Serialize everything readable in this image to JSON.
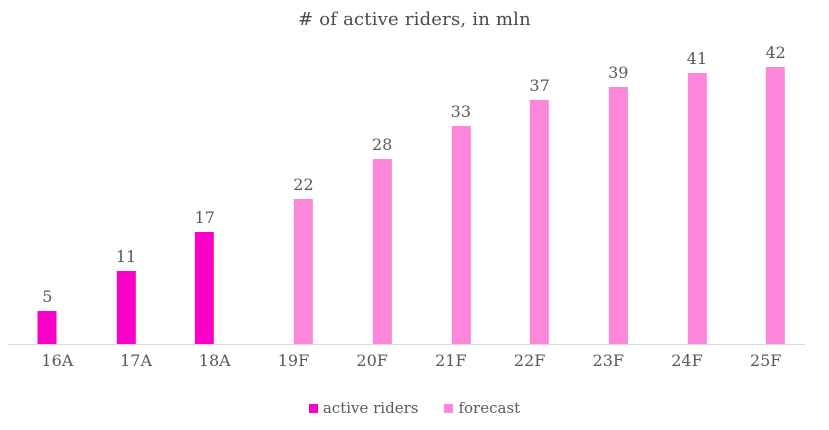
{
  "chart_data": {
    "type": "bar",
    "title": "# of active riders, in mln",
    "categories": [
      "16A",
      "17A",
      "18A",
      "19F",
      "20F",
      "21F",
      "22F",
      "23F",
      "24F",
      "25F"
    ],
    "series": [
      {
        "name": "active riders",
        "color": "#fa00c8",
        "values": [
          5,
          11,
          17,
          null,
          null,
          null,
          null,
          null,
          null,
          null
        ]
      },
      {
        "name": "forecast",
        "color": "#fc86da",
        "values": [
          null,
          null,
          null,
          22,
          28,
          33,
          37,
          39,
          41,
          42
        ]
      }
    ],
    "value_labels_shown": true,
    "xlabel": "",
    "ylabel": "",
    "ylim": [
      0,
      42
    ],
    "grid": "off",
    "y_axis_shown": false,
    "legend_position": "bottom",
    "colors": {
      "title_text": "#4a4a4a",
      "label_text": "#595959",
      "axis_line": "#d9d9d9",
      "background": "#ffffff"
    }
  }
}
